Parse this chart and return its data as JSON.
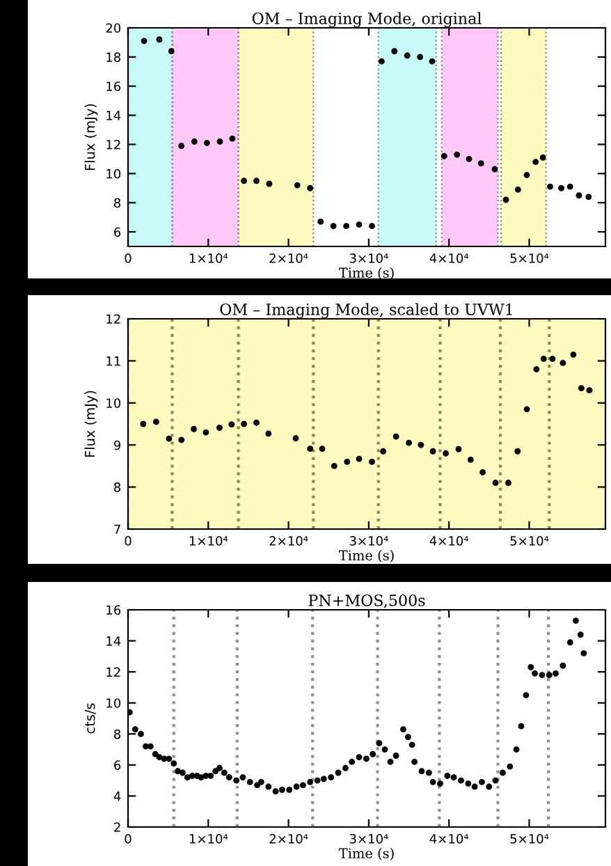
{
  "chart_data": [
    {
      "type": "scatter",
      "title": "OM – Imaging Mode, original",
      "xlabel": "Time (s)",
      "ylabel": "Flux (mJy)",
      "marker": "circle",
      "grid": false,
      "legend": false,
      "xlim": [
        0,
        59500
      ],
      "ylim": [
        5,
        20
      ],
      "xticks": [
        0,
        {
          "value": 10000,
          "label": "1×10⁴"
        },
        {
          "value": 20000,
          "label": "2×10⁴"
        },
        {
          "value": 30000,
          "label": "3×10⁴"
        },
        {
          "value": 40000,
          "label": "4×10⁴"
        },
        {
          "value": 50000,
          "label": "5×10⁴"
        }
      ],
      "yticks": [
        6,
        8,
        10,
        12,
        14,
        16,
        18,
        20
      ],
      "bands": [
        {
          "axis": "x",
          "from": 0,
          "to": 5500,
          "color": "#c8f8f8"
        },
        {
          "axis": "x",
          "from": 5500,
          "to": 13750,
          "color": "#ffc8f8"
        },
        {
          "axis": "x",
          "from": 13750,
          "to": 23100,
          "color": "#fffac0"
        },
        {
          "axis": "x",
          "from": 31200,
          "to": 38400,
          "color": "#c8f8f8"
        },
        {
          "axis": "x",
          "from": 39100,
          "to": 46100,
          "color": "#ffc8f8"
        },
        {
          "axis": "x",
          "from": 46500,
          "to": 52100,
          "color": "#fffac0"
        }
      ],
      "series": [
        {
          "color": "#000000",
          "x": [
            2000,
            3900,
            5400,
            6650,
            8270,
            9830,
            11450,
            13000,
            14450,
            16000,
            17600,
            21100,
            22700,
            24000,
            25600,
            27200,
            28800,
            30400,
            31600,
            33200,
            34800,
            36400,
            37900,
            39400,
            41000,
            42500,
            44000,
            45700,
            47100,
            48600,
            49700,
            50800,
            51700,
            52600,
            54000,
            55100,
            56200,
            57400
          ],
          "values": [
            19.1,
            19.2,
            18.4,
            11.9,
            12.2,
            12.1,
            12.2,
            12.4,
            9.5,
            9.5,
            9.3,
            9.2,
            9.0,
            6.7,
            6.4,
            6.4,
            6.5,
            6.4,
            17.7,
            18.4,
            18.1,
            18.0,
            17.7,
            11.2,
            11.3,
            11.0,
            10.7,
            10.3,
            8.2,
            8.9,
            9.9,
            10.8,
            11.1,
            9.1,
            9.0,
            9.1,
            8.5,
            8.4
          ]
        }
      ]
    },
    {
      "type": "scatter",
      "title": "OM – Imaging Mode, scaled to UVW1",
      "xlabel": "Time (s)",
      "ylabel": "Flux (mJy)",
      "marker": "circle",
      "grid": false,
      "legend": false,
      "xlim": [
        0,
        59500
      ],
      "ylim": [
        7,
        12
      ],
      "xticks": [
        0,
        {
          "value": 10000,
          "label": "1×10⁴"
        },
        {
          "value": 20000,
          "label": "2×10⁴"
        },
        {
          "value": 30000,
          "label": "3×10⁴"
        },
        {
          "value": 40000,
          "label": "4×10⁴"
        },
        {
          "value": 50000,
          "label": "5×10⁴"
        }
      ],
      "yticks": [
        7,
        8,
        9,
        10,
        11,
        12
      ],
      "bands": [
        {
          "axis": "x",
          "from": 0,
          "to": 59500,
          "color": "#fffac0"
        }
      ],
      "ref_lines": [
        {
          "axis": "x",
          "value": 5500,
          "color": "#8a8a50",
          "line_style": "dotted"
        },
        {
          "axis": "x",
          "value": 13750,
          "color": "#8a8a50",
          "line_style": "dotted"
        },
        {
          "axis": "x",
          "value": 23100,
          "color": "#8a8a50",
          "line_style": "dotted"
        },
        {
          "axis": "x",
          "value": 31200,
          "color": "#8a8a50",
          "line_style": "dotted"
        },
        {
          "axis": "x",
          "value": 38900,
          "color": "#8a8a50",
          "line_style": "dotted"
        },
        {
          "axis": "x",
          "value": 46400,
          "color": "#8a8a50",
          "line_style": "dotted"
        },
        {
          "axis": "x",
          "value": 52500,
          "color": "#8a8a50",
          "line_style": "dotted"
        }
      ],
      "series": [
        {
          "color": "#000000",
          "x": [
            1900,
            3500,
            5100,
            6650,
            8200,
            9700,
            11400,
            12900,
            14450,
            16000,
            17500,
            20900,
            22700,
            24200,
            25700,
            27300,
            28800,
            30400,
            31800,
            33400,
            35000,
            36500,
            38000,
            39600,
            41200,
            42700,
            44200,
            45800,
            47400,
            48550,
            49700,
            50900,
            51800,
            52900,
            54200,
            55500,
            56500,
            57500
          ],
          "values": [
            9.5,
            9.55,
            9.15,
            9.12,
            9.38,
            9.3,
            9.41,
            9.49,
            9.5,
            9.53,
            9.27,
            9.16,
            8.91,
            8.91,
            8.5,
            8.6,
            8.67,
            8.6,
            8.85,
            9.2,
            9.05,
            9.0,
            8.85,
            8.8,
            8.9,
            8.65,
            8.35,
            8.1,
            8.1,
            8.85,
            9.85,
            10.8,
            11.05,
            11.05,
            10.95,
            11.15,
            10.35,
            10.3
          ]
        }
      ]
    },
    {
      "type": "scatter",
      "title": "PN+MOS,500s",
      "xlabel": "Time (s)",
      "ylabel": "cts/s",
      "marker": "circle",
      "grid": false,
      "legend": false,
      "xlim": [
        0,
        59500
      ],
      "ylim": [
        2,
        16
      ],
      "xticks": [
        0,
        {
          "value": 10000,
          "label": "1×10⁴"
        },
        {
          "value": 20000,
          "label": "2×10⁴"
        },
        {
          "value": 30000,
          "label": "3×10⁴"
        },
        {
          "value": 40000,
          "label": "4×10⁴"
        },
        {
          "value": 50000,
          "label": "5×10⁴"
        }
      ],
      "yticks": [
        2,
        4,
        6,
        8,
        10,
        12,
        14,
        16
      ],
      "ref_lines": [
        {
          "axis": "x",
          "value": 5700,
          "color": "#909090",
          "line_style": "dotted"
        },
        {
          "axis": "x",
          "value": 13600,
          "color": "#909090",
          "line_style": "dotted"
        },
        {
          "axis": "x",
          "value": 23000,
          "color": "#909090",
          "line_style": "dotted"
        },
        {
          "axis": "x",
          "value": 31100,
          "color": "#909090",
          "line_style": "dotted"
        },
        {
          "axis": "x",
          "value": 38800,
          "color": "#909090",
          "line_style": "dotted"
        },
        {
          "axis": "x",
          "value": 46100,
          "color": "#909090",
          "line_style": "dotted"
        },
        {
          "axis": "x",
          "value": 52400,
          "color": "#909090",
          "line_style": "dotted"
        }
      ],
      "series": [
        {
          "color": "#000000",
          "x": [
            200,
            900,
            1600,
            2200,
            2800,
            3400,
            3900,
            4500,
            5100,
            5700,
            6200,
            6800,
            7400,
            8000,
            8600,
            9100,
            9700,
            10300,
            10900,
            11400,
            12000,
            12600,
            13500,
            14300,
            15200,
            16100,
            16600,
            17500,
            18400,
            19200,
            20100,
            21000,
            21800,
            22700,
            23600,
            24400,
            25300,
            26200,
            27100,
            27900,
            28800,
            29700,
            30500,
            31300,
            32000,
            32700,
            33400,
            34300,
            34900,
            35400,
            35700,
            36600,
            37500,
            38000,
            38900,
            39800,
            40600,
            41500,
            42400,
            43200,
            44100,
            45000,
            45800,
            46700,
            47600,
            48400,
            49000,
            49600,
            50200,
            50700,
            51600,
            52500,
            53300,
            54200,
            55100,
            55800,
            56400,
            56800
          ],
          "values": [
            9.4,
            8.3,
            8.0,
            7.2,
            7.2,
            6.7,
            6.5,
            6.4,
            6.4,
            6.1,
            5.6,
            5.5,
            5.2,
            5.3,
            5.3,
            5.2,
            5.3,
            5.3,
            5.6,
            5.8,
            5.5,
            5.2,
            5.0,
            5.2,
            4.9,
            4.7,
            4.9,
            4.6,
            4.3,
            4.4,
            4.4,
            4.6,
            4.7,
            4.9,
            5.0,
            5.1,
            5.2,
            5.5,
            5.8,
            6.2,
            6.5,
            6.4,
            6.7,
            7.4,
            7.0,
            6.2,
            6.6,
            8.3,
            7.8,
            7.3,
            6.2,
            5.6,
            5.5,
            4.9,
            4.8,
            5.3,
            5.2,
            5.0,
            4.8,
            4.6,
            4.9,
            4.6,
            5.0,
            5.5,
            5.9,
            7.0,
            8.5,
            10.5,
            12.3,
            11.9,
            11.8,
            11.8,
            11.9,
            12.4,
            13.9,
            15.3,
            14.4,
            13.2
          ]
        }
      ]
    }
  ]
}
